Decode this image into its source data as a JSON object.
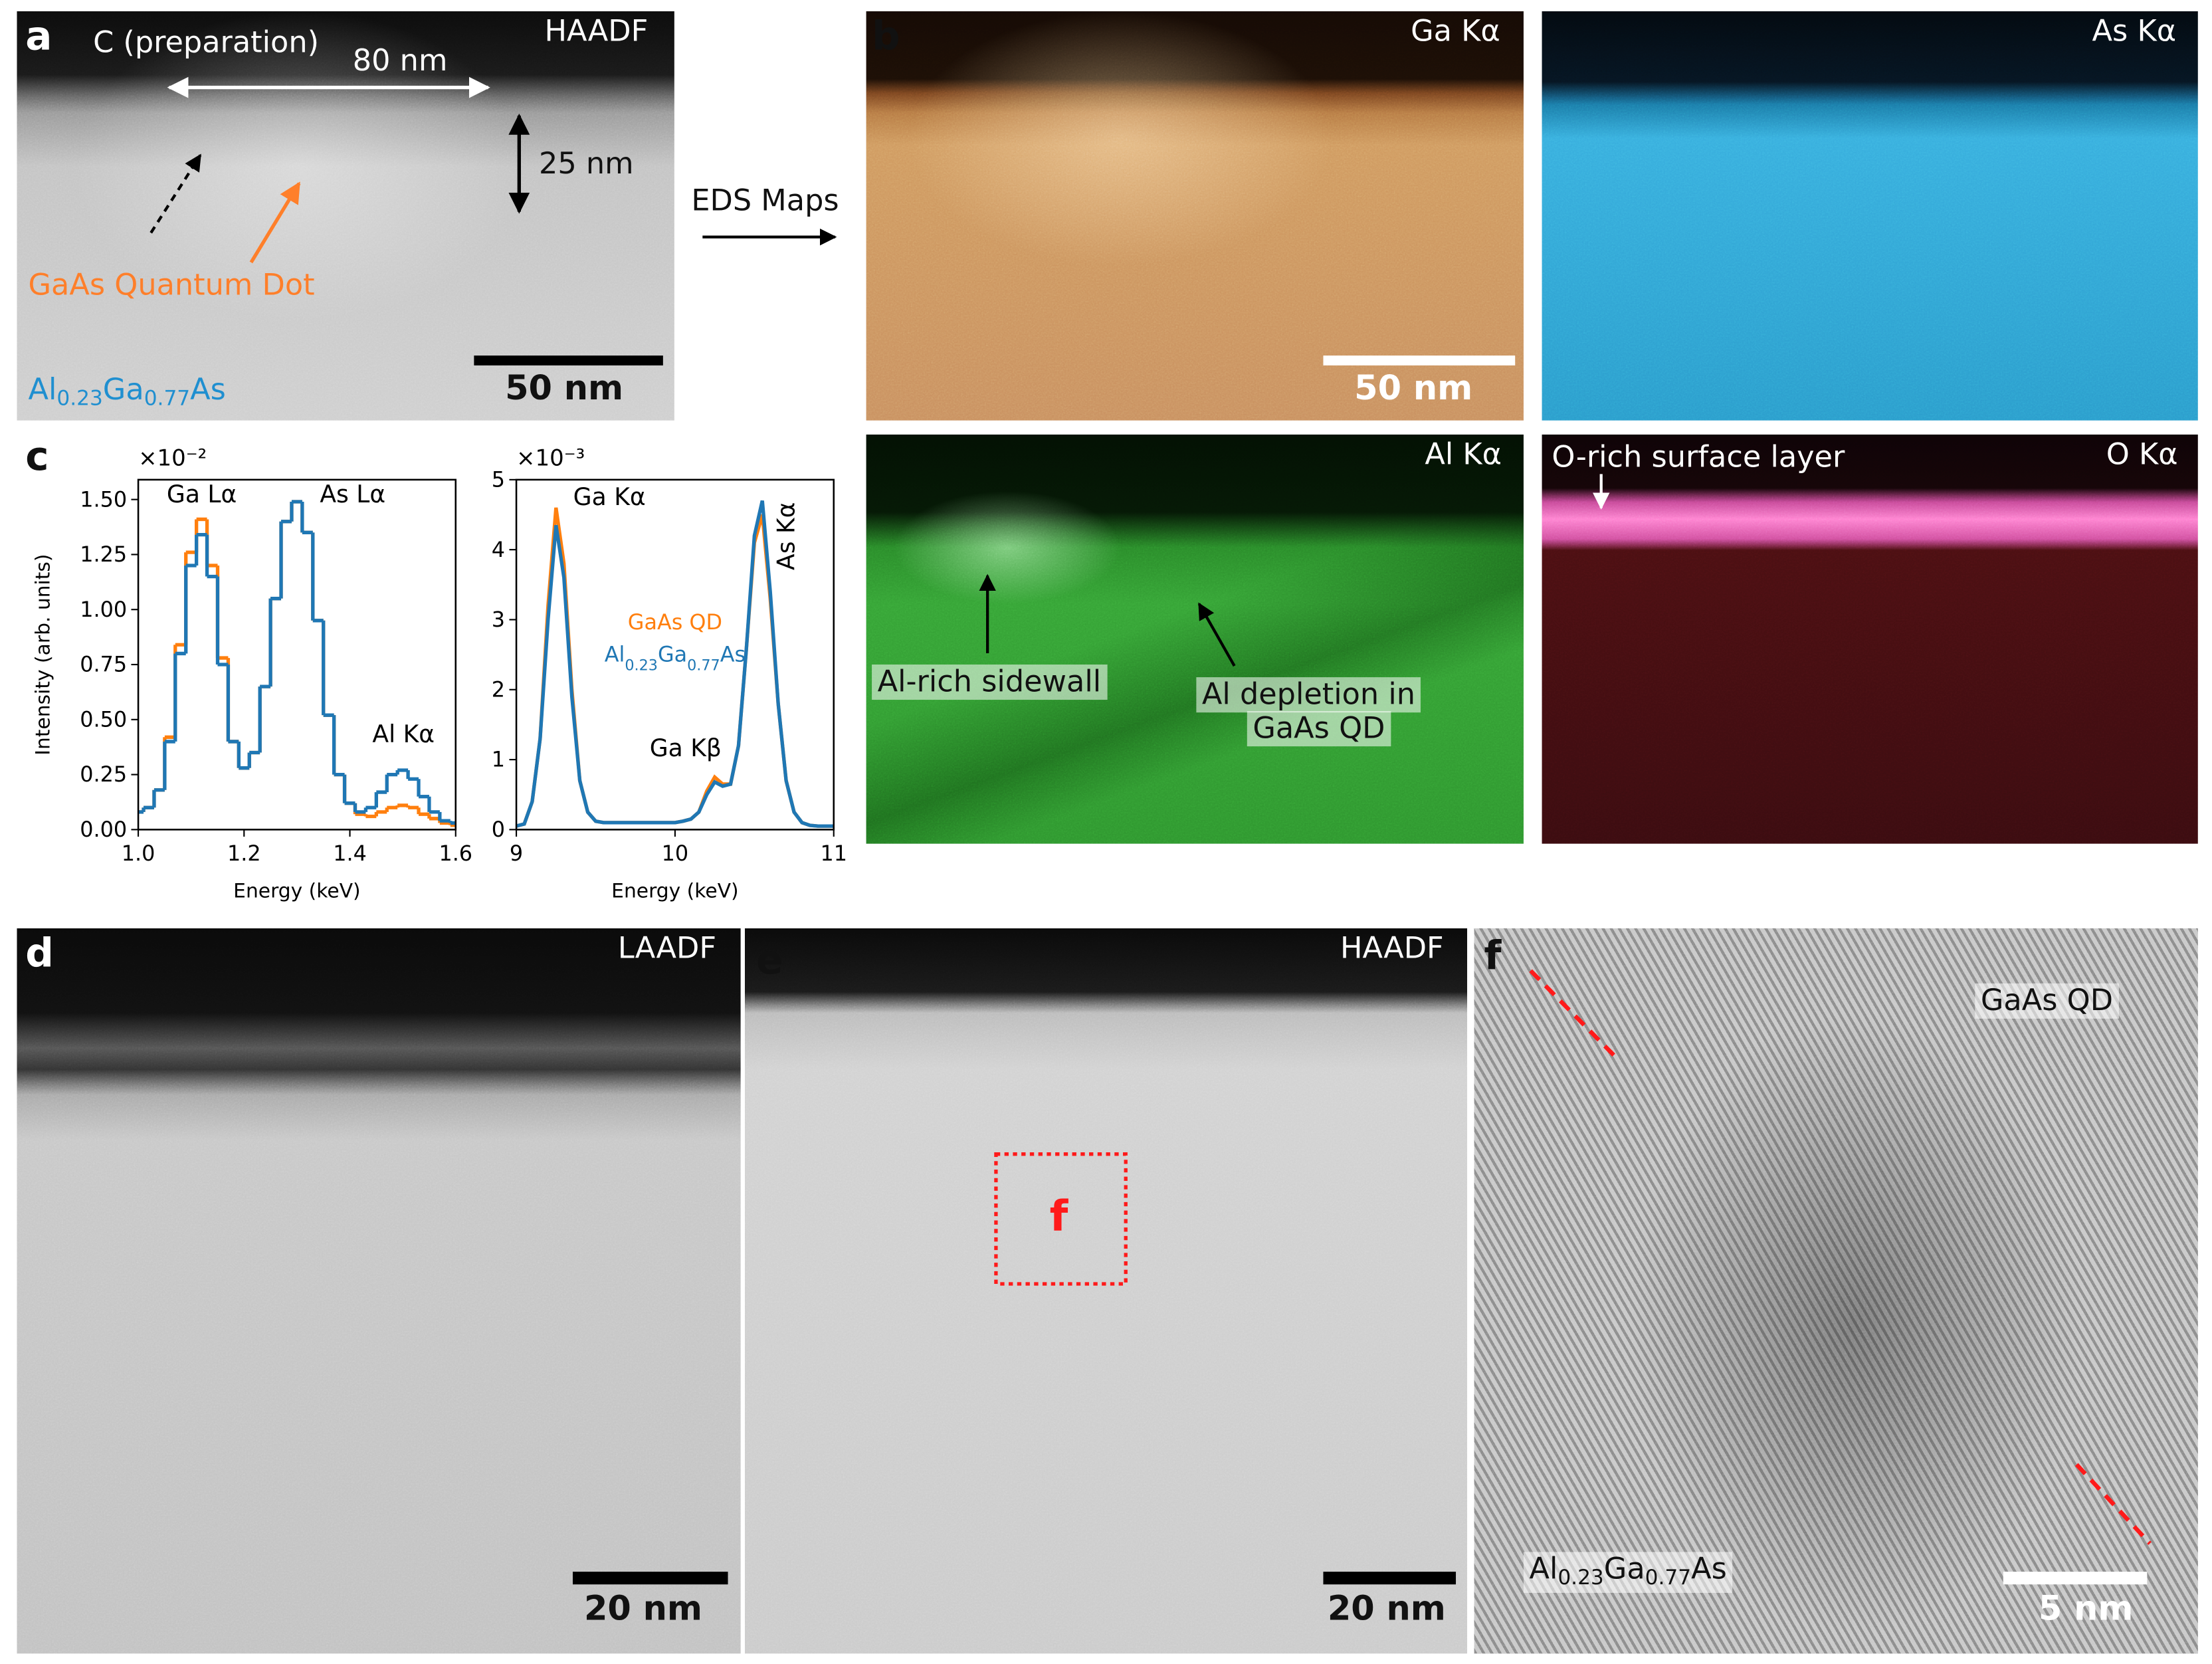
{
  "panels": {
    "a": {
      "label": "a",
      "mode": "HAADF",
      "coating": "C (preparation)",
      "width": "80 nm",
      "height": "25 nm",
      "dot": "GaAs Quantum Dot",
      "scale": "50 nm",
      "matrix": "Al0.23Ga0.77As"
    },
    "arrow": "EDS Maps",
    "b": {
      "label": "b",
      "ga": "Ga Kα",
      "scale": "50 nm",
      "as": "As Kα",
      "al": "Al Kα",
      "sidewall": "Al-rich sidewall",
      "depletion": [
        "Al depletion in",
        "GaAs QD"
      ],
      "surface": "O-rich surface layer",
      "o": "O Kα"
    },
    "c": {
      "label": "c"
    },
    "d": {
      "label": "d",
      "mode": "LAADF",
      "scale": "20 nm"
    },
    "e": {
      "label": "e",
      "mode": "HAADF",
      "box": "f",
      "scale": "20 nm"
    },
    "f": {
      "label": "f",
      "top": "GaAs QD",
      "bottom": "Al0.23Ga0.77As",
      "scale": "5 nm"
    }
  },
  "chart_data": [
    {
      "type": "line",
      "drawstyle": "steps-mid",
      "offset_text": "×10⁻²",
      "ylabel": "Intensity (arb. units)",
      "xlabel": "Energy (keV)",
      "xlim": [
        1.0,
        1.6
      ],
      "xticks": [
        {
          "value": 1.0,
          "label": "1.0"
        },
        1.2,
        1.4,
        1.6
      ],
      "ylim": [
        0,
        1.59
      ],
      "yticks": [
        {
          "value": 0,
          "label": "0.00"
        },
        0.25,
        {
          "value": 0.5,
          "label": "0.50"
        },
        0.75,
        {
          "value": 1,
          "label": "1.00"
        },
        1.25,
        {
          "value": 1.5,
          "label": "1.50"
        }
      ],
      "annotations": [
        "Ga Lα",
        "As Lα",
        "Al Kα"
      ],
      "x": [
        1.0,
        1.02,
        1.04,
        1.06,
        1.08,
        1.1,
        1.12,
        1.14,
        1.16,
        1.18,
        1.2,
        1.22,
        1.24,
        1.26,
        1.28,
        1.3,
        1.32,
        1.34,
        1.36,
        1.38,
        1.4,
        1.42,
        1.44,
        1.46,
        1.48,
        1.5,
        1.52,
        1.54,
        1.56,
        1.58,
        1.6
      ],
      "series": [
        {
          "color": "#ff7f0e",
          "values": [
            0.08,
            0.1,
            0.18,
            0.42,
            0.84,
            1.26,
            1.41,
            1.2,
            0.78,
            0.4,
            0.28,
            0.35,
            0.65,
            1.05,
            1.4,
            1.49,
            1.35,
            0.95,
            0.52,
            0.25,
            0.12,
            0.07,
            0.06,
            0.08,
            0.1,
            0.11,
            0.1,
            0.07,
            0.05,
            0.03,
            0.02
          ]
        },
        {
          "color": "#1f77b4",
          "values": [
            0.08,
            0.1,
            0.18,
            0.4,
            0.8,
            1.2,
            1.34,
            1.15,
            0.75,
            0.4,
            0.28,
            0.35,
            0.65,
            1.05,
            1.4,
            1.49,
            1.35,
            0.95,
            0.52,
            0.25,
            0.12,
            0.08,
            0.1,
            0.17,
            0.25,
            0.27,
            0.23,
            0.15,
            0.08,
            0.04,
            0.03
          ]
        }
      ]
    },
    {
      "type": "line",
      "offset_text": "×10⁻³",
      "xlabel": "Energy (keV)",
      "legend": "center",
      "xlim": [
        9,
        11
      ],
      "xticks": [
        9,
        10,
        11
      ],
      "ylim": [
        0,
        5
      ],
      "yticks": [
        0,
        1,
        2,
        3,
        4,
        5
      ],
      "annotations": [
        "Ga Kα",
        "Ga Kβ",
        "As Kα"
      ],
      "x": [
        9.0,
        9.05,
        9.1,
        9.15,
        9.2,
        9.25,
        9.3,
        9.35,
        9.4,
        9.45,
        9.5,
        9.55,
        9.6,
        9.65,
        9.7,
        9.75,
        9.8,
        9.85,
        9.9,
        9.95,
        10.0,
        10.05,
        10.1,
        10.15,
        10.2,
        10.25,
        10.3,
        10.35,
        10.4,
        10.45,
        10.5,
        10.55,
        10.6,
        10.65,
        10.7,
        10.75,
        10.8,
        10.85,
        10.9,
        10.95,
        11.0
      ],
      "series": [
        {
          "name": "GaAs QD",
          "color": "#ff7f0e",
          "values": [
            0.05,
            0.08,
            0.4,
            1.3,
            3.2,
            4.6,
            3.8,
            2.0,
            0.7,
            0.25,
            0.12,
            0.1,
            0.1,
            0.1,
            0.1,
            0.1,
            0.1,
            0.1,
            0.1,
            0.1,
            0.1,
            0.12,
            0.15,
            0.25,
            0.55,
            0.75,
            0.65,
            0.65,
            1.2,
            2.6,
            4.1,
            4.5,
            3.3,
            1.8,
            0.7,
            0.25,
            0.1,
            0.06,
            0.05,
            0.05,
            0.05
          ]
        },
        {
          "name": "Al0.23Ga0.77As",
          "color": "#1f77b4",
          "values": [
            0.05,
            0.08,
            0.4,
            1.3,
            3.0,
            4.35,
            3.6,
            1.9,
            0.7,
            0.25,
            0.12,
            0.1,
            0.1,
            0.1,
            0.1,
            0.1,
            0.1,
            0.1,
            0.1,
            0.1,
            0.1,
            0.12,
            0.15,
            0.25,
            0.5,
            0.68,
            0.62,
            0.65,
            1.2,
            2.6,
            4.2,
            4.7,
            3.4,
            1.8,
            0.7,
            0.25,
            0.1,
            0.06,
            0.05,
            0.05,
            0.05
          ]
        }
      ]
    }
  ]
}
